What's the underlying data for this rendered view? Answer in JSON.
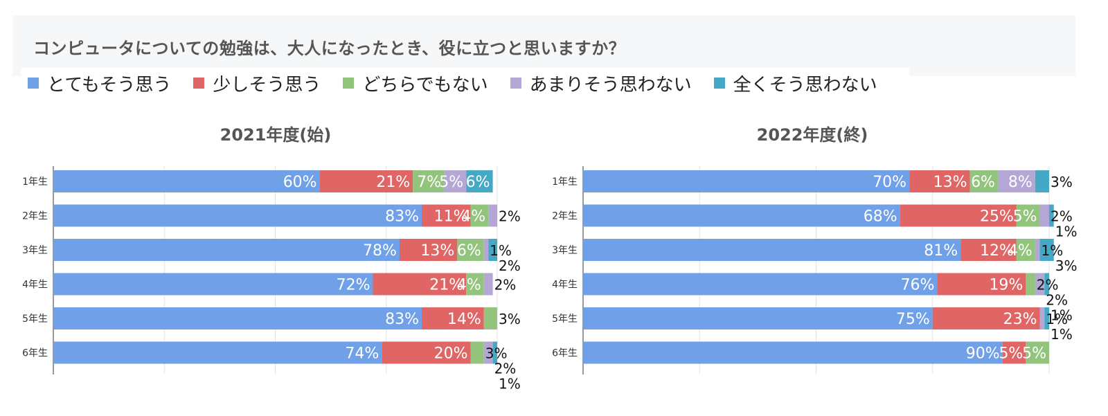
{
  "question": "コンピュータについての勉強は、大人になったとき、役に立つと思いますか？",
  "legend": [
    {
      "label": "とてもそう思う",
      "color": "#70a0e8"
    },
    {
      "label": "少しそう思う",
      "color": "#e06666"
    },
    {
      "label": "どちらでもない",
      "color": "#93c47d"
    },
    {
      "label": "あまりそう思わない",
      "color": "#b4a7d6"
    },
    {
      "label": "全くそう思わない",
      "color": "#45a9c5"
    }
  ],
  "chart_data": [
    {
      "type": "bar",
      "orientation": "horizontal",
      "stacked": true,
      "title": "2021年度(始)",
      "categories": [
        "1年生",
        "2年生",
        "3年生",
        "4年生",
        "5年生",
        "6年生"
      ],
      "series": [
        {
          "name": "とてもそう思う",
          "values": [
            60,
            83,
            78,
            72,
            83,
            74
          ]
        },
        {
          "name": "少しそう思う",
          "values": [
            21,
            11,
            13,
            21,
            14,
            20
          ]
        },
        {
          "name": "どちらでもない",
          "values": [
            7,
            4,
            6,
            4,
            3,
            3
          ]
        },
        {
          "name": "あまりそう思わない",
          "values": [
            5,
            2,
            1,
            2,
            0,
            2
          ]
        },
        {
          "name": "全くそう思わない",
          "values": [
            6,
            0,
            2,
            0,
            0,
            1
          ]
        }
      ],
      "xlim": [
        0,
        100
      ]
    },
    {
      "type": "bar",
      "orientation": "horizontal",
      "stacked": true,
      "title": "2022年度(終)",
      "categories": [
        "1年生",
        "2年生",
        "3年生",
        "4年生",
        "5年生",
        "6年生"
      ],
      "series": [
        {
          "name": "とてもそう思う",
          "values": [
            70,
            68,
            81,
            76,
            75,
            90
          ]
        },
        {
          "name": "少しそう思う",
          "values": [
            13,
            25,
            12,
            19,
            23,
            5
          ]
        },
        {
          "name": "どちらでもない",
          "values": [
            6,
            5,
            4,
            2,
            0,
            5
          ]
        },
        {
          "name": "あまりそう思わない",
          "values": [
            8,
            2,
            1,
            2,
            1,
            0
          ]
        },
        {
          "name": "全くそう思わない",
          "values": [
            3,
            1,
            3,
            1,
            1,
            0
          ]
        }
      ],
      "xlim": [
        0,
        100
      ]
    }
  ]
}
